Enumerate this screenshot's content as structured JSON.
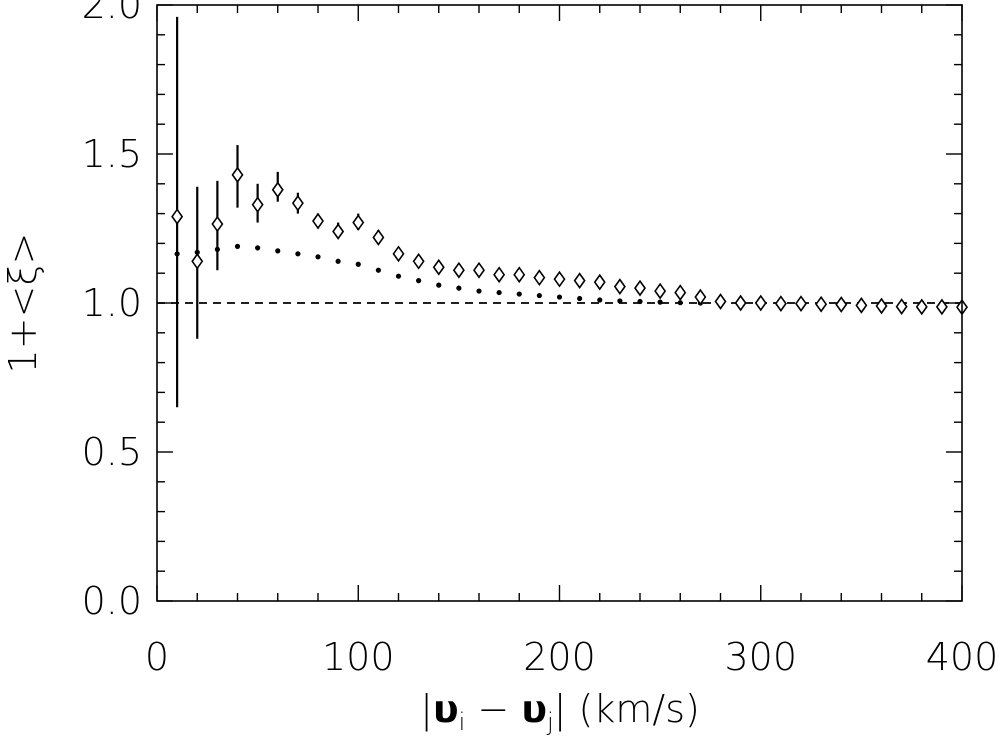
{
  "chart_data": {
    "type": "scatter",
    "title": "",
    "xlabel": "|υ_i − υ_j| (km/s)",
    "xlabel_parts": {
      "pre": "|",
      "v1": "υ",
      "sub1": "i",
      "mid": " − ",
      "v2": "υ",
      "sub2": "j",
      "post": "| (km/s)"
    },
    "ylabel": "1+<ξ>",
    "xlim": [
      0,
      400
    ],
    "ylim": [
      0.0,
      2.0
    ],
    "x_ticks": [
      "0",
      "100",
      "200",
      "300",
      "400"
    ],
    "y_ticks": [
      "0.0",
      "0.5",
      "1.0",
      "1.5",
      "2.0"
    ],
    "reference_line": {
      "y": 1.0,
      "style": "dashed"
    },
    "grid": false,
    "legend": "none",
    "series": [
      {
        "marker": "diamond",
        "x": [
          10,
          20,
          30,
          40,
          50,
          60,
          70,
          80,
          90,
          100,
          110,
          120,
          130,
          140,
          150,
          160,
          170,
          180,
          190,
          200,
          210,
          220,
          230,
          240,
          250,
          260,
          270,
          280,
          290,
          300,
          310,
          320,
          330,
          340,
          350,
          360,
          370,
          380,
          390,
          400
        ],
        "y": [
          1.29,
          1.14,
          1.265,
          1.43,
          1.33,
          1.38,
          1.335,
          1.275,
          1.24,
          1.27,
          1.22,
          1.165,
          1.14,
          1.12,
          1.11,
          1.11,
          1.095,
          1.095,
          1.085,
          1.08,
          1.075,
          1.07,
          1.055,
          1.05,
          1.04,
          1.035,
          1.02,
          1.005,
          1.0,
          1.0,
          0.998,
          0.998,
          0.996,
          0.995,
          0.992,
          0.99,
          0.988,
          0.987,
          0.987,
          0.986
        ],
        "err_low": [
          0.65,
          0.88,
          1.11,
          1.32,
          1.27,
          1.34,
          1.3,
          1.25,
          1.22,
          1.245,
          1.2,
          1.15,
          1.13,
          1.11,
          1.1,
          1.1,
          1.088,
          1.088,
          1.078,
          1.073,
          1.068,
          1.063,
          1.049,
          1.045,
          1.035,
          1.03,
          1.015,
          1.0,
          0.996,
          0.996,
          0.994,
          0.994,
          0.992,
          0.991,
          0.988,
          0.986,
          0.984,
          0.983,
          0.983,
          0.982
        ],
        "err_high": [
          1.96,
          1.39,
          1.41,
          1.53,
          1.4,
          1.44,
          1.37,
          1.3,
          1.27,
          1.3,
          1.245,
          1.185,
          1.155,
          1.13,
          1.12,
          1.12,
          1.102,
          1.102,
          1.092,
          1.087,
          1.082,
          1.077,
          1.061,
          1.055,
          1.045,
          1.04,
          1.025,
          1.01,
          1.004,
          1.004,
          1.002,
          1.002,
          1.0,
          0.999,
          0.996,
          0.994,
          0.992,
          0.991,
          0.991,
          0.99
        ]
      },
      {
        "marker": "dot",
        "x": [
          10,
          20,
          30,
          40,
          50,
          60,
          70,
          80,
          90,
          100,
          110,
          120,
          130,
          140,
          150,
          160,
          170,
          180,
          190,
          200,
          210,
          220,
          230,
          240,
          250,
          260,
          270,
          280,
          290,
          300,
          310,
          320,
          330,
          340,
          350,
          360,
          370,
          380,
          390,
          400
        ],
        "y": [
          1.165,
          1.17,
          1.18,
          1.19,
          1.185,
          1.175,
          1.165,
          1.155,
          1.14,
          1.13,
          1.11,
          1.09,
          1.075,
          1.06,
          1.05,
          1.04,
          1.035,
          1.03,
          1.025,
          1.02,
          1.015,
          1.01,
          1.007,
          1.005,
          1.003,
          1.001,
          1.0,
          1.0,
          1.0,
          0.999,
          0.998,
          0.997,
          0.996,
          0.995,
          0.994,
          0.993,
          0.992,
          0.991,
          0.99,
          0.99
        ]
      }
    ]
  }
}
